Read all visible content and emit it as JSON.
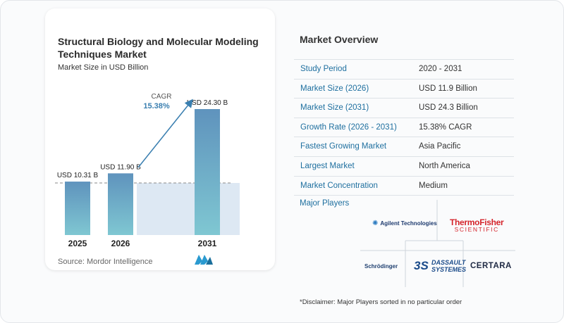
{
  "chart_data": {
    "type": "bar",
    "title": "Structural Biology and Molecular Modeling Techniques Market",
    "subtitle": "Market Size in USD Billion",
    "categories": [
      "2025",
      "2026",
      "2031"
    ],
    "values": [
      10.31,
      11.9,
      24.3
    ],
    "data_labels": [
      "USD 10.31 B",
      "USD 11.90 B",
      "USD 24.30 B"
    ],
    "cagr_label": "CAGR",
    "cagr_value": "15.38%",
    "colors": {
      "bar_top": "#5f93bd",
      "bar_bottom": "#7fc7d2",
      "accent": "#3a7fb0",
      "shade": "#dde8f3"
    },
    "grid": false
  },
  "source": "Source: Mordor Intelligence",
  "overview": {
    "title": "Market Overview",
    "rows": [
      {
        "label": "Study Period",
        "value": "2020 - 2031"
      },
      {
        "label": "Market Size (2026)",
        "value": "USD 11.9 Billion"
      },
      {
        "label": "Market Size (2031)",
        "value": "USD 24.3 Billion"
      },
      {
        "label": "Growth Rate (2026 - 2031)",
        "value": "15.38% CAGR"
      },
      {
        "label": "Fastest Growing Market",
        "value": "Asia Pacific"
      },
      {
        "label": "Largest Market",
        "value": "North America"
      },
      {
        "label": "Market Concentration",
        "value": "Medium"
      }
    ]
  },
  "players": {
    "title": "Major Players",
    "logos": {
      "agilent": "Agilent Technologies",
      "thermo_1": "ThermoFisher",
      "thermo_2": "SCIENTIFIC",
      "schrodinger": "Schrödinger",
      "dassault_1": "DASSAULT",
      "dassault_2": "SYSTEMES",
      "certara": "CERTARA"
    }
  },
  "disclaimer": "*Disclaimer: Major Players sorted in no particular order"
}
